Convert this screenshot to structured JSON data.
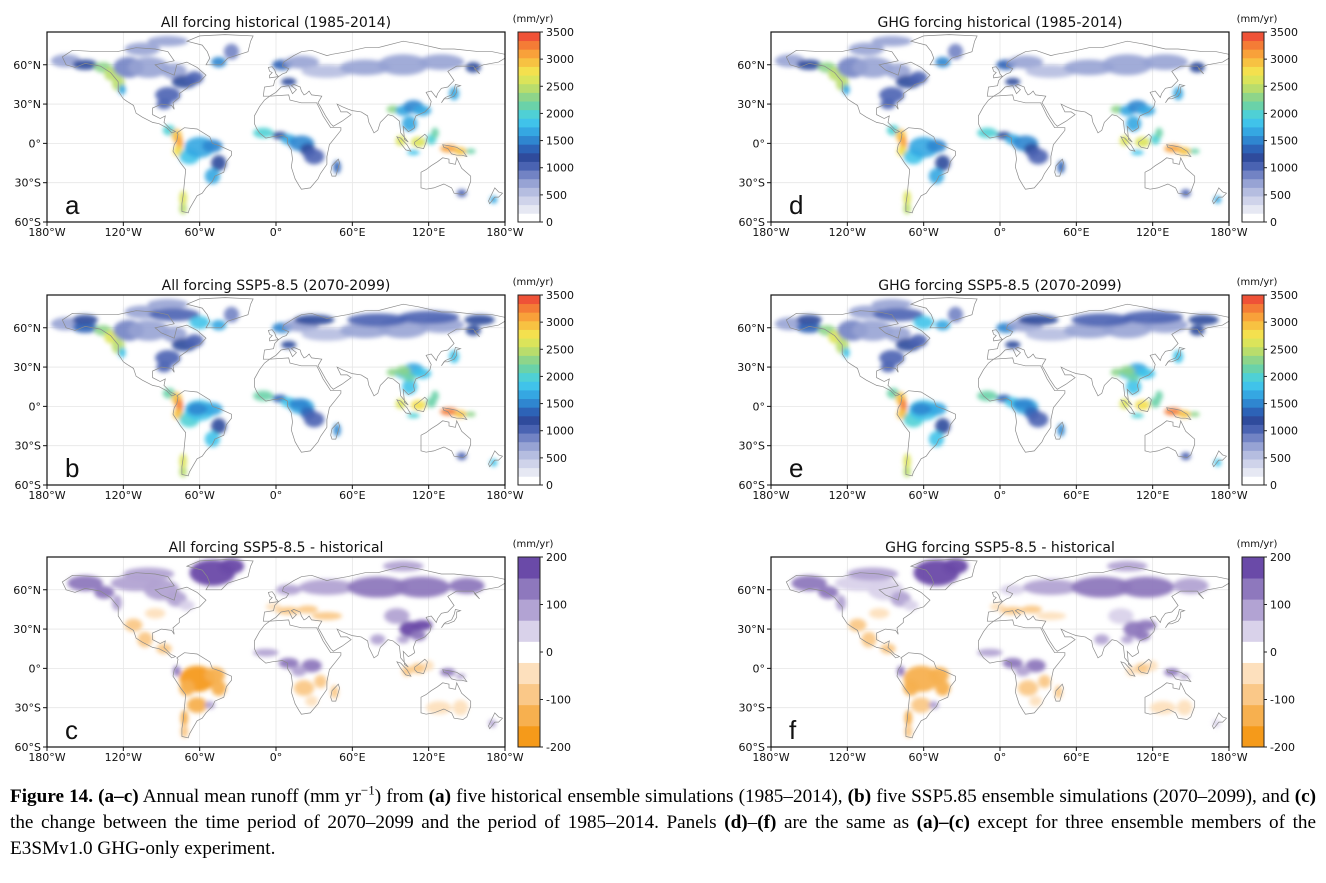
{
  "lon_ticks": [
    "180°W",
    "120°W",
    "60°W",
    "0°",
    "60°E",
    "120°E",
    "180°W"
  ],
  "lat_ticks": [
    "60°N",
    "30°N",
    "0°",
    "30°S",
    "60°S"
  ],
  "units": "(mm/yr)",
  "colorbars": {
    "runoff": {
      "labels": [
        "3500",
        "3000",
        "2500",
        "2000",
        "1500",
        "1000",
        "500",
        "0"
      ],
      "colors": [
        "#ffffff",
        "#e6e8f3",
        "#cfd3ea",
        "#b5bde0",
        "#97a3d4",
        "#7283c4",
        "#4a63b2",
        "#2f4b9c",
        "#2d63b7",
        "#2f86d0",
        "#35a7e2",
        "#40c3ea",
        "#4fd0d5",
        "#6ad2a9",
        "#8ed58a",
        "#b9dd6c",
        "#dbe45a",
        "#f4e04e",
        "#f7c242",
        "#f8a13a",
        "#f47c36",
        "#ef5237"
      ]
    },
    "change": {
      "labels": [
        "200",
        "100",
        "0",
        "-100",
        "-200"
      ],
      "colors": [
        "#f59a1a",
        "#f7b04f",
        "#fac888",
        "#fde0bd",
        "#ffffff",
        "#d9d2ea",
        "#b2a3d3",
        "#8e78bd",
        "#6a4aa8"
      ]
    }
  },
  "panels": [
    {
      "letter": "a",
      "title": "All forcing historical (1985-2014)",
      "scale": "runoff",
      "variant": "hist"
    },
    {
      "letter": "d",
      "title": "GHG forcing historical (1985-2014)",
      "scale": "runoff",
      "variant": "hist"
    },
    {
      "letter": "b",
      "title": "All forcing SSP5-8.5 (2070-2099)",
      "scale": "runoff",
      "variant": "future"
    },
    {
      "letter": "e",
      "title": "GHG forcing SSP5-8.5 (2070-2099)",
      "scale": "runoff",
      "variant": "future"
    },
    {
      "letter": "c",
      "title": "All forcing SSP5-8.5 - historical",
      "scale": "change",
      "variant": "diff"
    },
    {
      "letter": "f",
      "title": "GHG forcing SSP5-8.5 - historical",
      "scale": "change",
      "variant": "diff"
    }
  ],
  "caption": {
    "figure_label": "Figure 14.",
    "range_label": "(a–c)",
    "text1": "Annual mean runoff (mm yr",
    "exponent": "−1",
    "text2": ") from",
    "a_label": "(a)",
    "text3": "five historical ensemble simulations (1985–2014),",
    "b_label": "(b)",
    "text4": "five SSP5.85 ensemble simulations (2070–2099), and",
    "c_label": "(c)",
    "text5": "the change between the time period of 2070–2099 and the period of 1985–2014. Panels",
    "d_label": "(d)",
    "dash": "–",
    "f_label": "(f)",
    "text6": "are the same as",
    "ac_label": "(a)–(c)",
    "text7": "except for three ensemble members of the E3SMv1.0 GHG-only experiment."
  }
}
